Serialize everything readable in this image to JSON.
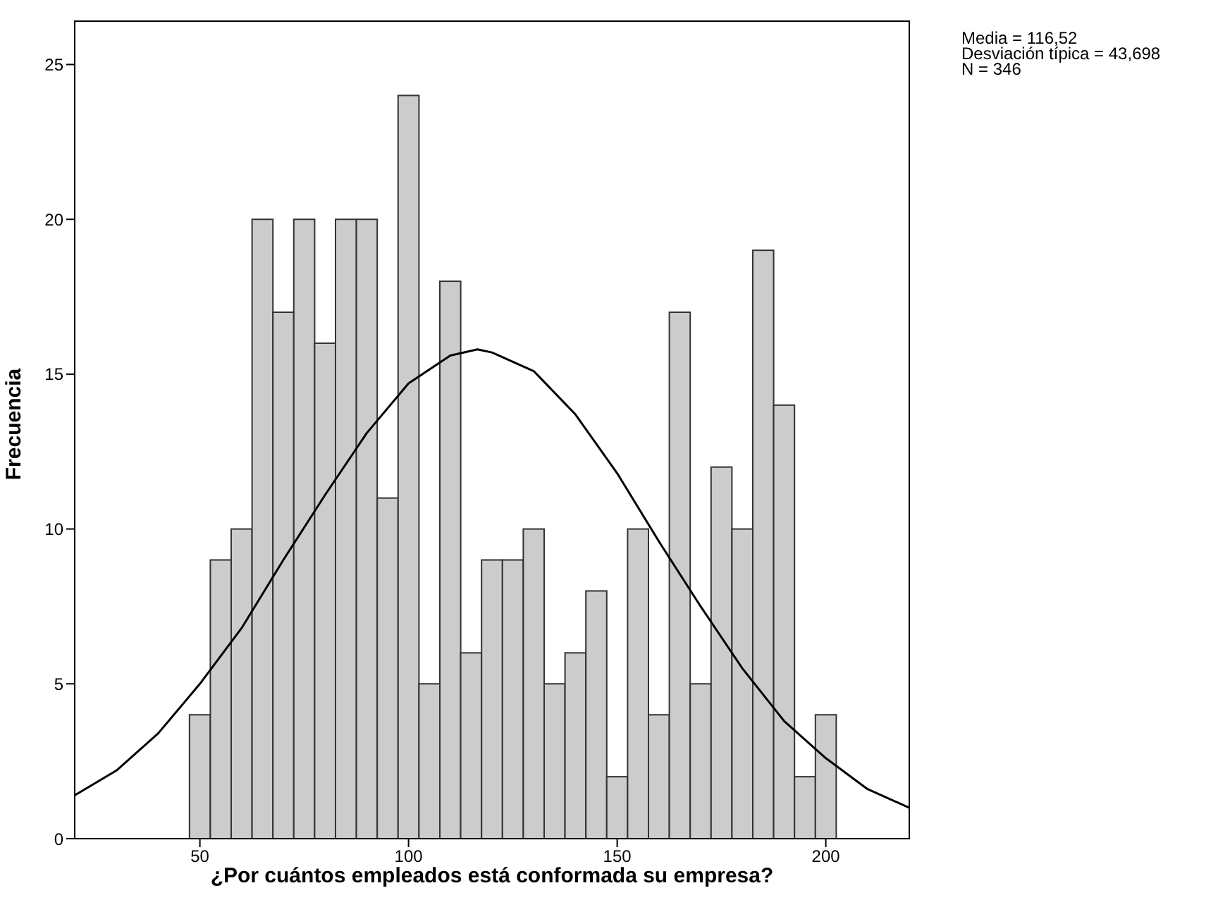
{
  "chart_data": {
    "type": "histogram",
    "xlabel": "¿Por cuántos empleados está conformada su empresa?",
    "ylabel": "Frecuencia",
    "annotations": [
      "Media = 116,52",
      "Desviación típica = 43,698",
      "N = 346"
    ],
    "bins": [
      47.5,
      52.5,
      57.5,
      62.5,
      67.5,
      72.5,
      77.5,
      82.5,
      87.5,
      92.5,
      97.5,
      102.5,
      107.5,
      112.5,
      117.5,
      122.5,
      127.5,
      132.5,
      137.5,
      142.5,
      147.5,
      152.5,
      157.5,
      162.5,
      167.5,
      172.5,
      177.5,
      182.5,
      187.5,
      192.5,
      197.5,
      202.5
    ],
    "values": [
      4,
      9,
      10,
      20,
      17,
      20,
      16,
      20,
      20,
      11,
      24,
      5,
      18,
      6,
      9,
      9,
      10,
      5,
      6,
      8,
      2,
      10,
      4,
      17,
      5,
      12,
      10,
      19,
      14,
      2,
      4
    ],
    "color": "#cccccc",
    "series": [
      {
        "type": "line",
        "color": "#000000",
        "x": [
          20,
          30,
          40,
          50,
          60,
          70,
          80,
          90,
          100,
          110,
          116.52,
          120,
          130,
          140,
          150,
          160,
          170,
          180,
          190,
          200,
          210,
          220
        ],
        "values": [
          1.4,
          2.2,
          3.4,
          5.0,
          6.8,
          9.0,
          11.1,
          13.1,
          14.7,
          15.6,
          15.8,
          15.7,
          15.1,
          13.7,
          11.8,
          9.6,
          7.5,
          5.5,
          3.8,
          2.6,
          1.6,
          1.0
        ]
      }
    ],
    "xlim": [
      20,
      220
    ],
    "xticks": [
      50,
      100,
      150,
      200
    ],
    "ylim": [
      0,
      26.4
    ],
    "yticks": [
      0,
      5,
      10,
      15,
      20,
      25
    ],
    "grid": false,
    "legend": false,
    "marker": "none",
    "line_style": "solid"
  }
}
